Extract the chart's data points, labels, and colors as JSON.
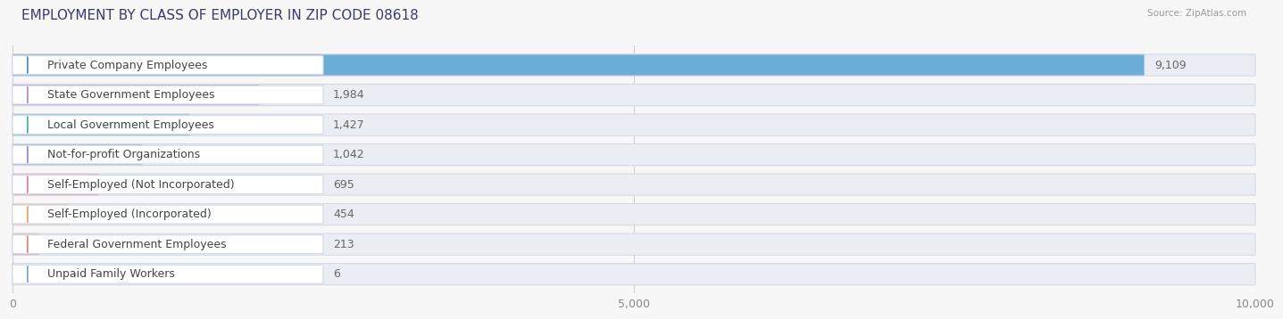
{
  "title": "EMPLOYMENT BY CLASS OF EMPLOYER IN ZIP CODE 08618",
  "source": "Source: ZipAtlas.com",
  "categories": [
    "Private Company Employees",
    "State Government Employees",
    "Local Government Employees",
    "Not-for-profit Organizations",
    "Self-Employed (Not Incorporated)",
    "Self-Employed (Incorporated)",
    "Federal Government Employees",
    "Unpaid Family Workers"
  ],
  "values": [
    9109,
    1984,
    1427,
    1042,
    695,
    454,
    213,
    6
  ],
  "bar_colors": [
    "#6aaed6",
    "#c4a8d4",
    "#6ec8be",
    "#a8b0e0",
    "#f4a0b8",
    "#f8c898",
    "#f0a8a0",
    "#a8c8e0"
  ],
  "dot_colors": [
    "#5090c8",
    "#b090c0",
    "#50b0a8",
    "#9090c8",
    "#e880a0",
    "#e8a868",
    "#e08880",
    "#80a8c8"
  ],
  "xlim": [
    0,
    10000
  ],
  "xticks": [
    0,
    5000,
    10000
  ],
  "xtick_labels": [
    "0",
    "5,000",
    "10,000"
  ],
  "background_color": "#f7f7f7",
  "bar_bg_color": "#eaeef4",
  "label_bg_color": "#ffffff",
  "title_fontsize": 11,
  "label_fontsize": 9,
  "value_fontsize": 9
}
